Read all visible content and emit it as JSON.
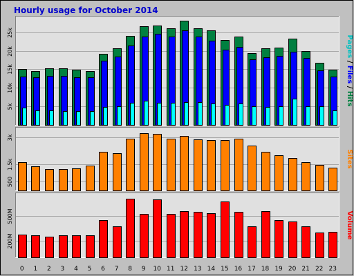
{
  "chart_data": {
    "type": "bar",
    "title": "Hourly usage for October 2014",
    "categories": [
      "0",
      "1",
      "2",
      "3",
      "4",
      "5",
      "6",
      "7",
      "8",
      "9",
      "10",
      "11",
      "12",
      "13",
      "14",
      "15",
      "16",
      "17",
      "18",
      "19",
      "20",
      "21",
      "22",
      "23"
    ],
    "colors": {
      "background": "#c0c0c0",
      "panel": "#e0e0e0",
      "hits": "#008040",
      "files": "#0000ff",
      "pages": "#00ffff",
      "sites": "#ff8000",
      "volume": "#ff0000",
      "title": "#0000cc"
    },
    "panels": [
      {
        "key": "traffic",
        "ylim": [
          0,
          28500
        ],
        "yticks": [
          5000,
          10000,
          15000,
          20000,
          25000
        ],
        "ytick_labels": [
          "5k",
          "10k",
          "15k",
          "20k",
          "25k"
        ],
        "label_parts": [
          {
            "text": "Pages",
            "color": "#00c0c0"
          },
          {
            "text": " / ",
            "color": "#000000"
          },
          {
            "text": "Files",
            "color": "#0000ff"
          },
          {
            "text": " / ",
            "color": "#000000"
          },
          {
            "text": "Hits",
            "color": "#008040"
          }
        ],
        "series": [
          {
            "name": "Hits",
            "color": "#008040",
            "values": [
              15000,
              14600,
              15200,
              15200,
              14900,
              14600,
              19100,
              20600,
              24000,
              26600,
              26800,
              26100,
              28200,
              26100,
              25500,
              22900,
              23800,
              19300,
              20600,
              20800,
              23300,
              20000,
              16800,
              14900
            ]
          },
          {
            "name": "Files",
            "color": "#0000ff",
            "values": [
              13100,
              12900,
              13200,
              13200,
              12900,
              12800,
              17300,
              18500,
              21500,
              23800,
              24500,
              23800,
              25500,
              23900,
              22700,
              20300,
              21100,
              17700,
              18300,
              18600,
              19800,
              18000,
              14800,
              13000
            ]
          },
          {
            "name": "Pages",
            "color": "#00ffff",
            "values": [
              4600,
              4000,
              4000,
              3800,
              3800,
              3800,
              4800,
              5100,
              6000,
              6500,
              6000,
              5900,
              6200,
              6100,
              5800,
              5400,
              5700,
              5000,
              4900,
              5100,
              7000,
              5000,
              5000,
              4000
            ]
          }
        ]
      },
      {
        "key": "sites",
        "ylim": [
          0,
          3400
        ],
        "yticks": [
          500,
          1500,
          3000
        ],
        "ytick_labels": [
          "500",
          "1.5k",
          "3k"
        ],
        "label_parts": [
          {
            "text": "Sites",
            "color": "#ff8000"
          }
        ],
        "series": [
          {
            "name": "Sites",
            "color": "#ff8000",
            "values": [
              1600,
              1350,
              1200,
              1200,
              1250,
              1400,
              2200,
              2100,
              2950,
              3250,
              3200,
              2950,
              3100,
              2900,
              2850,
              2850,
              2950,
              2550,
              2200,
              2000,
              1850,
              1600,
              1450,
              1300
            ]
          }
        ]
      },
      {
        "key": "volume",
        "ylim": [
          0,
          740
        ],
        "yticks": [
          200,
          500
        ],
        "ytick_labels": [
          "200M",
          "500M"
        ],
        "label_parts": [
          {
            "text": "Volume",
            "color": "#ff0000"
          }
        ],
        "series": [
          {
            "name": "Volume",
            "color": "#ff0000",
            "values": [
              275,
              265,
              250,
              265,
              265,
              265,
              450,
              375,
              710,
              520,
              695,
              520,
              555,
              545,
              535,
              675,
              545,
              375,
              555,
              450,
              430,
              375,
              300,
              310
            ]
          }
        ]
      }
    ]
  }
}
